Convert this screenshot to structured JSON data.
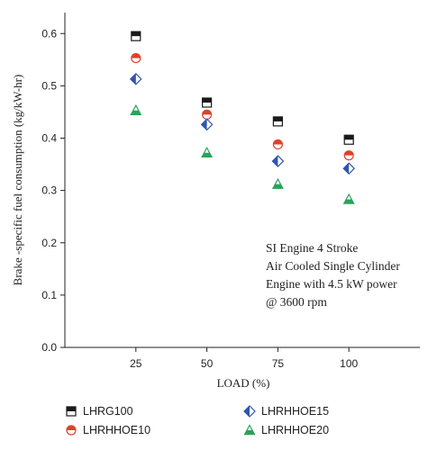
{
  "chart_data": {
    "type": "scatter",
    "xlabel": "LOAD (%)",
    "ylabel": "Brake -specific fuel consumption (kg/kW-hr)",
    "x": [
      25,
      50,
      75,
      100
    ],
    "xticks": [
      "25",
      "50",
      "75",
      "100"
    ],
    "yticks": [
      "0.0",
      "0.1",
      "0.2",
      "0.3",
      "0.4",
      "0.5",
      "0.6"
    ],
    "xlim": [
      0,
      125
    ],
    "ylim": [
      0,
      0.64
    ],
    "grid": false,
    "legend_position": "bottom",
    "annotation": [
      "SI Engine 4 Stroke",
      "Air Cooled Single Cylinder",
      "Engine with 4.5 kW power",
      "@ 3600 rpm"
    ],
    "series": [
      {
        "name": "LHRG100",
        "values": [
          0.595,
          0.468,
          0.432,
          0.397
        ],
        "color": "#1a1a1a",
        "marker": "half-filled-square"
      },
      {
        "name": "LHRHHOE10",
        "values": [
          0.553,
          0.445,
          0.388,
          0.367
        ],
        "color": "#e0402a",
        "marker": "half-filled-circle"
      },
      {
        "name": "LHRHHOE15",
        "values": [
          0.513,
          0.426,
          0.356,
          0.342
        ],
        "color": "#2f55b0",
        "marker": "half-filled-diamond"
      },
      {
        "name": "LHRHHOE20",
        "values": [
          0.453,
          0.372,
          0.312,
          0.283
        ],
        "color": "#2aa35a",
        "marker": "half-filled-triangle"
      }
    ]
  }
}
